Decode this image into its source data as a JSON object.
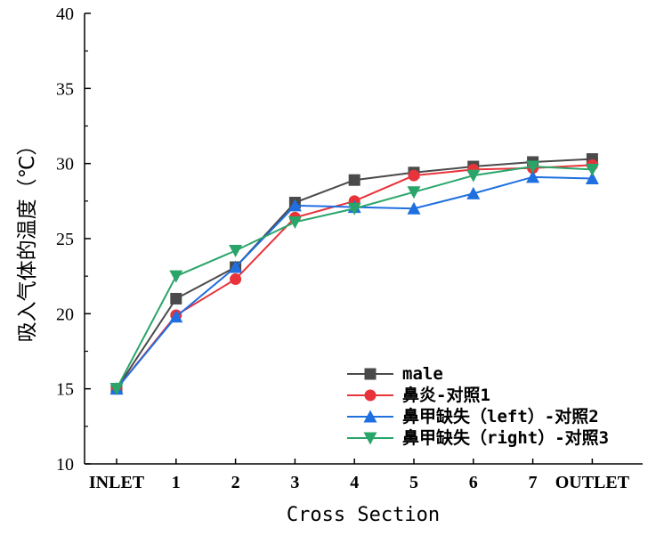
{
  "chart_data": {
    "type": "line",
    "title": "",
    "xlabel": "Cross Section",
    "ylabel": "吸入气体的温度（℃）",
    "categories": [
      "INLET",
      "1",
      "2",
      "3",
      "4",
      "5",
      "6",
      "7",
      "OUTLET"
    ],
    "ylim": [
      10,
      40
    ],
    "yticks": [
      10,
      15,
      20,
      25,
      30,
      35,
      40
    ],
    "grid": false,
    "legend_position": "bottom-right",
    "series": [
      {
        "name": "male",
        "color": "#4a4a4a",
        "marker": "square",
        "values": [
          15.0,
          21.0,
          23.1,
          27.4,
          28.9,
          29.4,
          29.8,
          30.1,
          30.3
        ]
      },
      {
        "name": "鼻炎-对照1",
        "color": "#e8333a",
        "marker": "circle",
        "values": [
          15.0,
          19.9,
          22.3,
          26.4,
          27.5,
          29.2,
          29.6,
          29.7,
          29.9
        ]
      },
      {
        "name": "鼻甲缺失（left）-对照2",
        "color": "#1f6fe0",
        "marker": "triangle-up",
        "values": [
          15.0,
          19.8,
          23.1,
          27.2,
          27.1,
          27.0,
          28.0,
          29.1,
          29.0
        ]
      },
      {
        "name": "鼻甲缺失（right）-对照3",
        "color": "#2aa56a",
        "marker": "triangle-down",
        "values": [
          15.0,
          22.5,
          24.2,
          26.1,
          27.0,
          28.1,
          29.2,
          29.8,
          29.6
        ]
      }
    ]
  }
}
